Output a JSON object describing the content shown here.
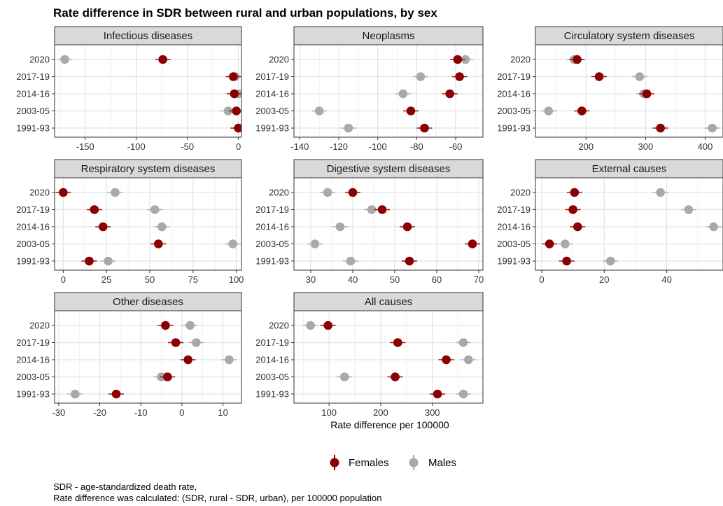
{
  "chart_data": {
    "type": "scatter",
    "title": "Rate difference in SDR between rural and urban populations, by sex",
    "xlabel": "Rate difference per 100000",
    "categories": [
      "2020",
      "2017-19",
      "2014-16",
      "2003-05",
      "1991-93"
    ],
    "legend": {
      "position": "bottom",
      "entries": [
        "Females",
        "Males"
      ]
    },
    "colors": {
      "Females": "#8b0000",
      "Males": "#a9a9a9"
    },
    "grid": true,
    "panels": [
      {
        "name": "Infectious diseases",
        "xlim": [
          -180,
          3
        ],
        "xticks": [
          -150,
          -100,
          -50,
          0
        ],
        "series": [
          {
            "name": "Females",
            "values": [
              -74,
              -5,
              -4,
              -2,
              0
            ]
          },
          {
            "name": "Males",
            "values": [
              -170,
              -3,
              0,
              -10,
              0
            ]
          }
        ]
      },
      {
        "name": "Neoplasms",
        "xlim": [
          -143,
          -46
        ],
        "xticks": [
          -140,
          -120,
          -100,
          -80,
          -60
        ],
        "series": [
          {
            "name": "Females",
            "values": [
              -59,
              -58,
              -63,
              -83,
              -76
            ]
          },
          {
            "name": "Males",
            "values": [
              -55,
              -78,
              -87,
              -130,
              -115
            ]
          }
        ]
      },
      {
        "name": "Circulatory system diseases",
        "xlim": [
          115,
          430
        ],
        "xticks": [
          200,
          300,
          400
        ],
        "series": [
          {
            "name": "Females",
            "values": [
              185,
              222,
              302,
              193,
              325
            ]
          },
          {
            "name": "Males",
            "values": [
              180,
              290,
              297,
              137,
              412
            ]
          }
        ]
      },
      {
        "name": "Respiratory system diseases",
        "xlim": [
          -5,
          103
        ],
        "xticks": [
          0,
          25,
          50,
          75,
          100
        ],
        "series": [
          {
            "name": "Females",
            "values": [
              0,
              18,
              23,
              55,
              15
            ]
          },
          {
            "name": "Males",
            "values": [
              30,
              53,
              57,
              98,
              26
            ]
          }
        ]
      },
      {
        "name": "Digestive system diseases",
        "xlim": [
          26,
          71
        ],
        "xticks": [
          30,
          40,
          50,
          60,
          70
        ],
        "series": [
          {
            "name": "Females",
            "values": [
              40,
              47,
              53,
              68.5,
              53.5
            ]
          },
          {
            "name": "Males",
            "values": [
              34,
              44.5,
              37,
              31,
              39.5
            ]
          }
        ]
      },
      {
        "name": "External causes",
        "xlim": [
          -2,
          58
        ],
        "xticks": [
          0,
          20,
          40
        ],
        "series": [
          {
            "name": "Females",
            "values": [
              10.5,
              10,
              11.5,
              2.5,
              8
            ]
          },
          {
            "name": "Males",
            "values": [
              38,
              47,
              55,
              7.5,
              22
            ]
          }
        ]
      },
      {
        "name": "Other diseases",
        "xlim": [
          -31,
          14.5
        ],
        "xticks": [
          -30,
          -20,
          -10,
          0,
          10
        ],
        "series": [
          {
            "name": "Females",
            "values": [
              -4,
              -1.5,
              1.5,
              -3.5,
              -16
            ]
          },
          {
            "name": "Males",
            "values": [
              2,
              3.5,
              11.5,
              -5,
              -26
            ]
          }
        ]
      },
      {
        "name": "All causes",
        "xlim": [
          32,
          398
        ],
        "xticks": [
          100,
          200,
          300
        ],
        "series": [
          {
            "name": "Females",
            "values": [
              98,
              233,
              327,
              228,
              310
            ]
          },
          {
            "name": "Males",
            "values": [
              64,
              360,
              370,
              130,
              360
            ]
          }
        ]
      }
    ]
  },
  "footnote": {
    "line1": "SDR - age-standardized death rate,",
    "line2": "Rate difference was calculated: (SDR, rural - SDR, urban), per 100000 population"
  }
}
